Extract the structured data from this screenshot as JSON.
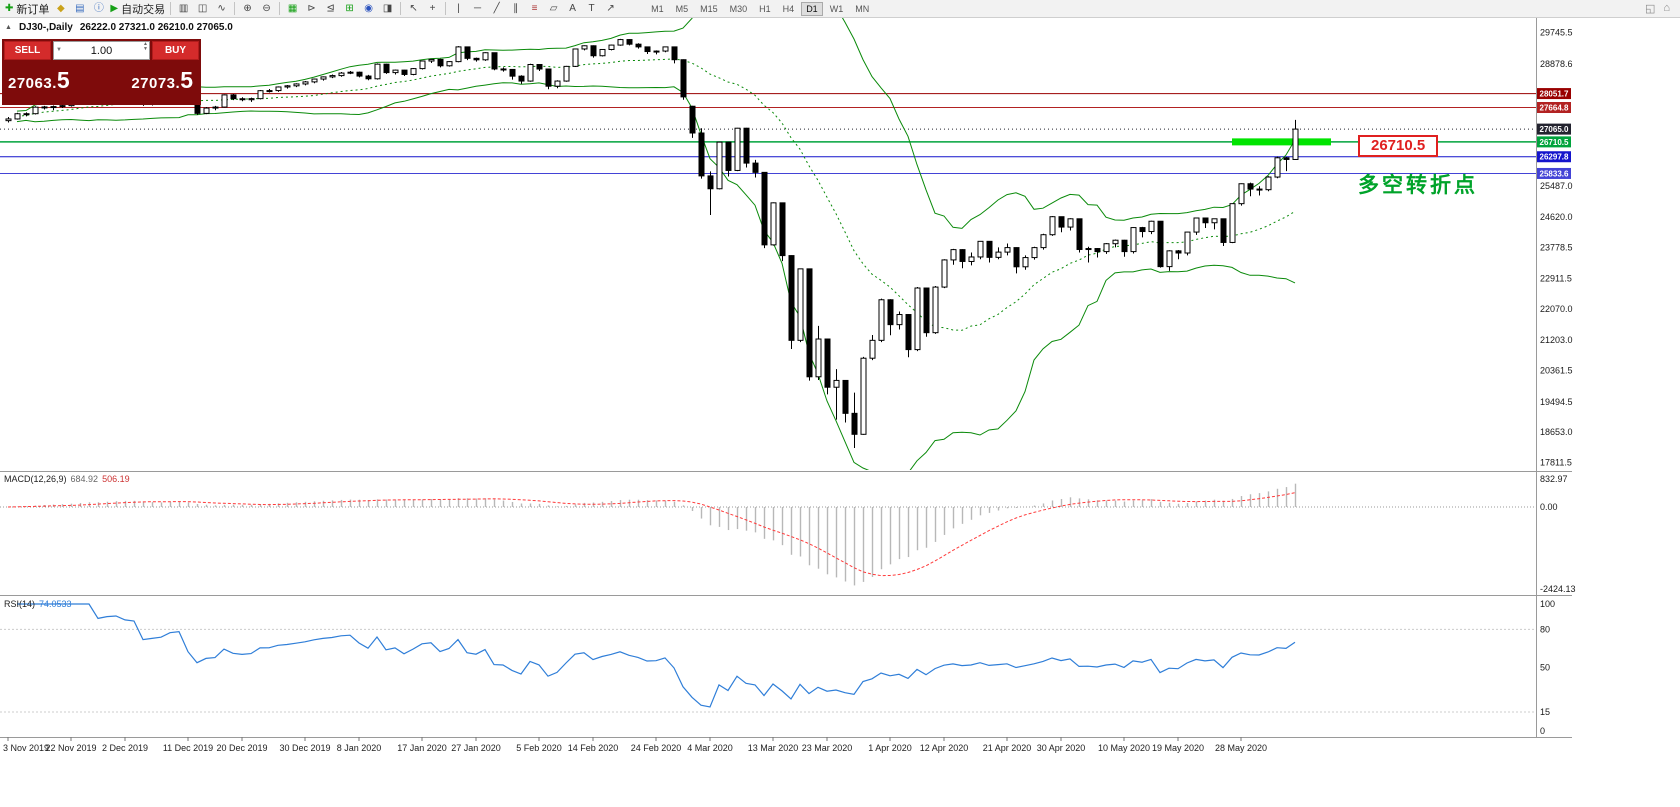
{
  "toolbar": {
    "icons": [
      {
        "name": "new-order-button",
        "glyph": "✚",
        "color": "#16a016",
        "label": "新订单"
      },
      {
        "name": "profiles-button",
        "glyph": "◆",
        "color": "#caa21a"
      },
      {
        "name": "market-watch-button",
        "glyph": "▤",
        "color": "#3a6ebf"
      },
      {
        "name": "data-window-button",
        "glyph": "ⓘ",
        "color": "#3a6ebf"
      },
      {
        "name": "auto-trading-button",
        "glyph": "▶",
        "color": "#16a016",
        "label": "自动交易"
      },
      {
        "sep": true
      },
      {
        "name": "bar-chart-button",
        "glyph": "▥",
        "color": "#444444"
      },
      {
        "name": "candlestick-chart-button",
        "glyph": "◫",
        "color": "#444444"
      },
      {
        "name": "line-chart-button",
        "glyph": "∿",
        "color": "#444444"
      },
      {
        "sep": true
      },
      {
        "name": "zoom-in-button",
        "glyph": "⊕",
        "color": "#444444"
      },
      {
        "name": "zoom-out-button",
        "glyph": "⊖",
        "color": "#444444"
      },
      {
        "sep": true
      },
      {
        "name": "grid-button",
        "glyph": "▦",
        "color": "#16a016"
      },
      {
        "name": "auto-scroll-button",
        "glyph": "⊳",
        "color": "#444444"
      },
      {
        "name": "chart-shift-button",
        "glyph": "⊴",
        "color": "#444444"
      },
      {
        "name": "tile-windows-button",
        "glyph": "⊞",
        "color": "#16a016"
      },
      {
        "name": "indicators-button",
        "glyph": "◉",
        "color": "#2a52be"
      },
      {
        "name": "new-chart-button",
        "glyph": "◨",
        "color": "#444444"
      },
      {
        "sep": true
      },
      {
        "name": "cursor-button",
        "glyph": "↖",
        "color": "#444444"
      },
      {
        "name": "crosshair-button",
        "glyph": "+",
        "color": "#444444"
      },
      {
        "sep": true
      },
      {
        "name": "vertical-line-button",
        "glyph": "|",
        "color": "#444444"
      },
      {
        "name": "horizontal-line-button",
        "glyph": "─",
        "color": "#444444"
      },
      {
        "name": "trendline-button",
        "glyph": "╱",
        "color": "#444444"
      },
      {
        "name": "channel-button",
        "glyph": "∥",
        "color": "#444444"
      },
      {
        "name": "fibonacci-button",
        "glyph": "≡",
        "color": "#aa3333"
      },
      {
        "name": "shapes-button",
        "glyph": "▱",
        "color": "#444444"
      },
      {
        "name": "text-button",
        "glyph": "A",
        "color": "#444444"
      },
      {
        "name": "label-button",
        "glyph": "T",
        "color": "#444444"
      },
      {
        "name": "arrows-button",
        "glyph": "↗",
        "color": "#444444"
      }
    ],
    "timeframes": [
      "M1",
      "M5",
      "M15",
      "M30",
      "H1",
      "H4",
      "D1",
      "W1",
      "MN"
    ],
    "active_timeframe": "D1",
    "right_icons": [
      {
        "name": "chart-window-icon",
        "glyph": "◱"
      },
      {
        "name": "home-icon",
        "glyph": "⌂"
      }
    ]
  },
  "symbol_info": {
    "expander": "▲",
    "symbol_period": "DJ30-,Daily",
    "ohlc": "26222.0 27321.0 26210.0 27065.0"
  },
  "trade_panel": {
    "sell_label": "SELL",
    "buy_label": "BUY",
    "volume": "1.00",
    "sell_price_int": "27063.",
    "sell_price_big": "5",
    "buy_price_int": "27073.",
    "buy_price_big": "5"
  },
  "chart_data": {
    "type": "candlestick",
    "title": "DJ30- Daily",
    "candles": [
      [
        27300,
        27400,
        27250,
        27347
      ],
      [
        27347,
        27520,
        27330,
        27492
      ],
      [
        27492,
        27530,
        27420,
        27493
      ],
      [
        27493,
        27700,
        27470,
        27674
      ],
      [
        27674,
        27710,
        27610,
        27681
      ],
      [
        27681,
        27720,
        27590,
        27691
      ],
      [
        27691,
        27770,
        27650,
        27717
      ],
      [
        27717,
        27810,
        27690,
        27783
      ],
      [
        27783,
        27950,
        27760,
        27934
      ],
      [
        27934,
        28030,
        27880,
        28004
      ],
      [
        28004,
        28010,
        27780,
        27821
      ],
      [
        27821,
        28060,
        27800,
        28036
      ],
      [
        28036,
        28150,
        28000,
        28121
      ],
      [
        28121,
        28160,
        28020,
        28066
      ],
      [
        28066,
        28100,
        27980,
        28051
      ],
      [
        28051,
        28070,
        27710,
        27766
      ],
      [
        27766,
        27850,
        27720,
        27821
      ],
      [
        27821,
        27900,
        27780,
        27876
      ],
      [
        27876,
        28120,
        27850,
        28102
      ],
      [
        28102,
        28180,
        28060,
        28164
      ],
      [
        28164,
        28170,
        27750,
        27783
      ],
      [
        27783,
        27820,
        27460,
        27502
      ],
      [
        27502,
        27680,
        27480,
        27649
      ],
      [
        27649,
        27710,
        27590,
        27677
      ],
      [
        27677,
        28030,
        27660,
        28015
      ],
      [
        28015,
        28040,
        27870,
        27909
      ],
      [
        27909,
        27950,
        27840,
        27881
      ],
      [
        27881,
        27940,
        27820,
        27911
      ],
      [
        27911,
        28150,
        27890,
        28132
      ],
      [
        28132,
        28180,
        28080,
        28135
      ],
      [
        28135,
        28250,
        28100,
        28235
      ],
      [
        28235,
        28290,
        28190,
        28267
      ],
      [
        28267,
        28340,
        28230,
        28319
      ],
      [
        28319,
        28400,
        28280,
        28376
      ],
      [
        28376,
        28470,
        28340,
        28455
      ],
      [
        28455,
        28530,
        28410,
        28515
      ],
      [
        28515,
        28580,
        28480,
        28551
      ],
      [
        28551,
        28650,
        28520,
        28621
      ],
      [
        28621,
        28680,
        28590,
        28645
      ],
      [
        28645,
        28660,
        28500,
        28538
      ],
      [
        28538,
        28570,
        28420,
        28462
      ],
      [
        28462,
        28890,
        28440,
        28868
      ],
      [
        28868,
        28880,
        28600,
        28634
      ],
      [
        28634,
        28720,
        28580,
        28703
      ],
      [
        28703,
        28710,
        28540,
        28583
      ],
      [
        28583,
        28760,
        28560,
        28745
      ],
      [
        28745,
        28970,
        28720,
        28956
      ],
      [
        28956,
        29010,
        28900,
        29000
      ],
      [
        29000,
        29020,
        28780,
        28823
      ],
      [
        28823,
        28950,
        28800,
        28939
      ],
      [
        28939,
        29370,
        28920,
        29348
      ],
      [
        29348,
        29360,
        28980,
        29030
      ],
      [
        29030,
        29050,
        28940,
        28989
      ],
      [
        28989,
        29200,
        28960,
        29186
      ],
      [
        29186,
        29190,
        28700,
        28735
      ],
      [
        28735,
        28780,
        28660,
        28722
      ],
      [
        28722,
        28730,
        28440,
        28535
      ],
      [
        28535,
        28560,
        28320,
        28399
      ],
      [
        28399,
        28880,
        28380,
        28859
      ],
      [
        28859,
        28870,
        28680,
        28734
      ],
      [
        28734,
        28740,
        28170,
        28256
      ],
      [
        28256,
        28420,
        28200,
        28399
      ],
      [
        28399,
        28820,
        28380,
        28807
      ],
      [
        28807,
        29300,
        28790,
        29290
      ],
      [
        29290,
        29390,
        29250,
        29379
      ],
      [
        29379,
        29390,
        29050,
        29102
      ],
      [
        29102,
        29290,
        29080,
        29276
      ],
      [
        29276,
        29410,
        29250,
        29398
      ],
      [
        29398,
        29570,
        29380,
        29551
      ],
      [
        29551,
        29560,
        29390,
        29423
      ],
      [
        29423,
        29450,
        29300,
        29348
      ],
      [
        29348,
        29360,
        29150,
        29219
      ],
      [
        29219,
        29250,
        29140,
        29232
      ],
      [
        29232,
        29360,
        29200,
        29348
      ],
      [
        29348,
        29350,
        28890,
        28992
      ],
      [
        28992,
        29000,
        27880,
        27960
      ],
      [
        27700,
        27710,
        26820,
        26957
      ],
      [
        26957,
        27090,
        25690,
        25766
      ],
      [
        25766,
        25890,
        24680,
        25409
      ],
      [
        25409,
        26710,
        25390,
        26703
      ],
      [
        26703,
        26710,
        25750,
        25917
      ],
      [
        25917,
        27100,
        25900,
        27090
      ],
      [
        27090,
        27100,
        26000,
        26121
      ],
      [
        26121,
        26210,
        25720,
        25864
      ],
      [
        25864,
        25870,
        23760,
        23851
      ],
      [
        23851,
        25030,
        23830,
        25018
      ],
      [
        25018,
        25020,
        23400,
        23553
      ],
      [
        23553,
        23560,
        20960,
        21200
      ],
      [
        21200,
        23190,
        21150,
        23185
      ],
      [
        23185,
        23190,
        20080,
        20188
      ],
      [
        20188,
        21600,
        20100,
        21237
      ],
      [
        21237,
        21250,
        19700,
        19898
      ],
      [
        19898,
        20400,
        19000,
        20087
      ],
      [
        20087,
        20100,
        18920,
        19173
      ],
      [
        19173,
        19750,
        18210,
        18591
      ],
      [
        18591,
        20740,
        18580,
        20704
      ],
      [
        20704,
        21350,
        20650,
        21200
      ],
      [
        21200,
        22360,
        21150,
        22327
      ],
      [
        22327,
        22340,
        21340,
        21636
      ],
      [
        21636,
        22000,
        21500,
        21917
      ],
      [
        21917,
        21930,
        20730,
        20943
      ],
      [
        20943,
        22680,
        20900,
        22653
      ],
      [
        22653,
        22660,
        21300,
        21413
      ],
      [
        21413,
        22710,
        21380,
        22679
      ],
      [
        22679,
        23450,
        22650,
        23433
      ],
      [
        23433,
        23740,
        23300,
        23719
      ],
      [
        23719,
        23730,
        23200,
        23390
      ],
      [
        23390,
        23640,
        23280,
        23515
      ],
      [
        23515,
        23960,
        23450,
        23949
      ],
      [
        23949,
        23960,
        23360,
        23504
      ],
      [
        23504,
        23780,
        23450,
        23650
      ],
      [
        23650,
        23890,
        23560,
        23775
      ],
      [
        23775,
        23780,
        23060,
        23242
      ],
      [
        23242,
        23560,
        23160,
        23498
      ],
      [
        23498,
        23800,
        23440,
        23775
      ],
      [
        23775,
        24160,
        23720,
        24133
      ],
      [
        24133,
        24650,
        24100,
        24633
      ],
      [
        24633,
        24640,
        24200,
        24345
      ],
      [
        24345,
        24590,
        24250,
        24575
      ],
      [
        24575,
        24580,
        23640,
        23723
      ],
      [
        23723,
        23800,
        23360,
        23749
      ],
      [
        23749,
        23760,
        23500,
        23664
      ],
      [
        23664,
        23900,
        23600,
        23883
      ],
      [
        23883,
        24000,
        23780,
        23980
      ],
      [
        23980,
        23990,
        23520,
        23664
      ],
      [
        23664,
        24340,
        23610,
        24331
      ],
      [
        24331,
        24350,
        24060,
        24221
      ],
      [
        24221,
        24520,
        24150,
        24507
      ],
      [
        24507,
        24510,
        23220,
        23247
      ],
      [
        23247,
        23700,
        23130,
        23685
      ],
      [
        23685,
        23710,
        23450,
        23625
      ],
      [
        23625,
        24210,
        23560,
        24206
      ],
      [
        24206,
        24600,
        24130,
        24597
      ],
      [
        24597,
        24610,
        24320,
        24465
      ],
      [
        24465,
        24580,
        24280,
        24575
      ],
      [
        24575,
        24580,
        23820,
        23918
      ],
      [
        23918,
        25000,
        23900,
        24995
      ],
      [
        24995,
        25560,
        24940,
        25548
      ],
      [
        25548,
        25580,
        25200,
        25400
      ],
      [
        25400,
        25480,
        25220,
        25383
      ],
      [
        25383,
        25760,
        25340,
        25734
      ],
      [
        25734,
        26300,
        25700,
        26269
      ],
      [
        26269,
        26290,
        25900,
        26222
      ],
      [
        26222,
        27321,
        26210,
        27065
      ]
    ],
    "bollinger": {
      "period": 20,
      "deviation": 2,
      "color": "#0a8a0a"
    },
    "price_axis_labels": [
      "29745.5",
      "28878.6",
      "25487.0",
      "24620.0",
      "23778.5",
      "22911.5",
      "22070.0",
      "21203.0",
      "20361.5",
      "19494.5",
      "18653.0",
      "17811.5"
    ],
    "price_tags": [
      {
        "price": "28051.7",
        "color": "#990000",
        "width": 1
      },
      {
        "price": "27664.8",
        "color": "#b22222",
        "width": 1
      },
      {
        "price": "27065.0",
        "color": "#23232f",
        "width": 1,
        "dashed": true
      },
      {
        "price": "26710.5",
        "color": "#00a33c",
        "width": 1.5
      },
      {
        "price": "26297.8",
        "color": "#1414cc",
        "width": 1
      },
      {
        "price": "25833.6",
        "color": "#4343d6",
        "width": 1
      }
    ],
    "green_zone": {
      "price": 26710.5,
      "from_index": 136,
      "to_index": 147,
      "color": "#00e400"
    },
    "callout": {
      "text": "26710.5"
    },
    "annotation": {
      "text": "多空转折点"
    },
    "dates": [
      "3 Nov 2019",
      "22 Nov 2019",
      "2 Dec 2019",
      "11 Dec 2019",
      "20 Dec 2019",
      "30 Dec 2019",
      "8 Jan 2020",
      "17 Jan 2020",
      "27 Jan 2020",
      "5 Feb 2020",
      "14 Feb 2020",
      "24 Feb 2020",
      "4 Mar 2020",
      "13 Mar 2020",
      "23 Mar 2020",
      "1 Apr 2020",
      "12 Apr 2020",
      "21 Apr 2020",
      "30 Apr 2020",
      "10 May 2020",
      "19 May 2020",
      "28 May 2020"
    ],
    "macd": {
      "name": "MACD(12,26,9)",
      "value_main": "684.92",
      "value_signal": "506.19",
      "axis_labels": [
        "832.97",
        "0.00",
        "-2424.13"
      ],
      "bar_color": "#b8b8b8",
      "signal_color": "#ff3b3b"
    },
    "rsi": {
      "name": "RSI(14)",
      "value": "74.0533",
      "axis_labels": [
        "100",
        "80",
        "50",
        "15",
        "0"
      ],
      "levels": [
        80,
        15
      ],
      "line_color": "#2f7ed8"
    }
  }
}
